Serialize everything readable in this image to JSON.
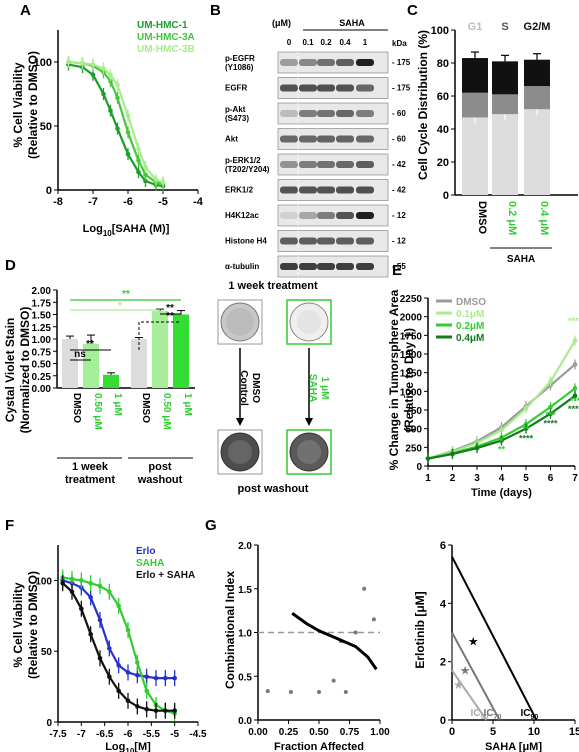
{
  "panels": {
    "A": "A",
    "B": "B",
    "C": "C",
    "D": "D",
    "E": "E",
    "F": "F",
    "G": "G"
  },
  "colors": {
    "hmc1": "#1b9e2a",
    "hmc3a": "#43c83a",
    "hmc3b": "#a8ec8e",
    "dmso": "#9a9a9a",
    "erlo": "#2233cc",
    "saha": "#33cc33",
    "combo": "#111111",
    "g1": "#dddddd",
    "s": "#8c8c8c",
    "g2m": "#111111"
  },
  "chart_data": [
    {
      "panel": "A",
      "type": "line",
      "xlabel": "Log10[SAHA (M)]",
      "ylabel": "% Cell Viability (Relative to DMSO)",
      "xlim": [
        -8,
        -4
      ],
      "ylim": [
        0,
        125
      ],
      "xticks": [
        "-8",
        "-7",
        "-6",
        "-5",
        "-4"
      ],
      "yticks": [
        "0",
        "50",
        "100"
      ],
      "series": [
        {
          "name": "UM-HMC-1",
          "x": [
            -7.7,
            -7.3,
            -7.0,
            -6.7,
            -6.5,
            -6.3,
            -6.0,
            -5.7,
            -5.5,
            -5.2,
            -5.0
          ],
          "y": [
            98,
            96,
            90,
            75,
            62,
            48,
            28,
            14,
            7,
            4,
            3
          ]
        },
        {
          "name": "UM-HMC-3A",
          "x": [
            -7.7,
            -7.3,
            -7.0,
            -6.7,
            -6.5,
            -6.3,
            -6.0,
            -5.7,
            -5.5,
            -5.2,
            -5.0
          ],
          "y": [
            100,
            99,
            97,
            92,
            85,
            72,
            45,
            23,
            12,
            6,
            5
          ]
        },
        {
          "name": "UM-HMC-3B",
          "x": [
            -7.7,
            -7.3,
            -7.0,
            -6.7,
            -6.5,
            -6.3,
            -6.0,
            -5.7,
            -5.5,
            -5.2,
            -5.0
          ],
          "y": [
            100,
            99,
            98,
            95,
            90,
            82,
            58,
            32,
            18,
            8,
            6
          ]
        }
      ]
    },
    {
      "panel": "C",
      "type": "bar",
      "ylabel": "Cell Cycle Distribution (%)",
      "ylim": [
        0,
        100
      ],
      "yticks": [
        "0",
        "20",
        "40",
        "60",
        "80",
        "100"
      ],
      "categories": [
        "DMSO",
        "0.2 μM",
        "0.4 μM"
      ],
      "group_label": "SAHA",
      "legend": [
        "G1",
        "S",
        "G2/M"
      ],
      "series": [
        {
          "name": "G1",
          "values": [
            47,
            49,
            52
          ]
        },
        {
          "name": "S",
          "values": [
            15,
            12,
            14
          ]
        },
        {
          "name": "G2/M",
          "values": [
            21,
            20,
            16
          ]
        }
      ]
    },
    {
      "panel": "D",
      "type": "bar",
      "ylabel": "Cystal Violet Stain (Normalized to DMSO)",
      "ylim": [
        0,
        2.0
      ],
      "yticks": [
        "0.00",
        "0.25",
        "0.50",
        "0.75",
        "1.00",
        "1.25",
        "1.50",
        "1.75",
        "2.00"
      ],
      "categories": [
        "DMSO",
        "0.50 μM",
        "1 μM",
        "DMSO",
        "0.50 μM",
        "1 μM"
      ],
      "values": [
        1.0,
        0.9,
        0.27,
        1.0,
        1.57,
        1.5
      ],
      "groups": [
        "1 week treatment",
        "post washout"
      ],
      "sig": [
        "ns",
        "**",
        "**",
        "**",
        "*",
        "**"
      ]
    },
    {
      "panel": "E",
      "type": "line",
      "xlabel": "Time (days)",
      "ylabel": "% Change in Tumorsphere Area (Relative to Day 1)",
      "xlim": [
        1,
        7
      ],
      "ylim": [
        0,
        2250
      ],
      "xticks": [
        "1",
        "2",
        "3",
        "4",
        "5",
        "6",
        "7"
      ],
      "yticks": [
        "0",
        "250",
        "500",
        "750",
        "1000",
        "1250",
        "1500",
        "1750",
        "2000",
        "2250"
      ],
      "series": [
        {
          "name": "DMSO",
          "x": [
            1,
            2,
            3,
            4,
            5,
            6,
            7
          ],
          "y": [
            100,
            200,
            330,
            520,
            800,
            1080,
            1360
          ]
        },
        {
          "name": "0.1μM",
          "x": [
            1,
            2,
            3,
            4,
            5,
            6,
            7
          ],
          "y": [
            100,
            190,
            310,
            480,
            770,
            1130,
            1680
          ]
        },
        {
          "name": "0.2μM",
          "x": [
            1,
            2,
            3,
            4,
            5,
            6,
            7
          ],
          "y": [
            100,
            170,
            260,
            380,
            560,
            790,
            1040
          ]
        },
        {
          "name": "0.4μM",
          "x": [
            1,
            2,
            3,
            4,
            5,
            6,
            7
          ],
          "y": [
            100,
            160,
            240,
            340,
            500,
            700,
            940
          ]
        }
      ],
      "annotations": [
        "****",
        "*",
        "**",
        "**",
        "****",
        "***",
        "****",
        "***",
        "****"
      ]
    },
    {
      "panel": "F",
      "type": "line",
      "xlabel": "Log10[M]",
      "ylabel": "% Cell Viability (Relative to DMSO)",
      "xlim": [
        -7.5,
        -4.5
      ],
      "ylim": [
        0,
        125
      ],
      "xticks": [
        "-7.5",
        "-7",
        "-6.5",
        "-6",
        "-5.5",
        "-5",
        "-4.5"
      ],
      "yticks": [
        "0",
        "50",
        "100"
      ],
      "series": [
        {
          "name": "Erlo",
          "x": [
            -7.4,
            -7.2,
            -7.0,
            -6.8,
            -6.6,
            -6.4,
            -6.2,
            -6.0,
            -5.8,
            -5.6,
            -5.4,
            -5.2,
            -5.0
          ],
          "y": [
            100,
            98,
            95,
            88,
            72,
            52,
            40,
            35,
            33,
            32,
            31,
            31,
            31
          ]
        },
        {
          "name": "SAHA",
          "x": [
            -7.4,
            -7.2,
            -7.0,
            -6.8,
            -6.6,
            -6.4,
            -6.2,
            -6.0,
            -5.8,
            -5.6,
            -5.4,
            -5.2,
            -5.0
          ],
          "y": [
            102,
            101,
            100,
            98,
            96,
            92,
            82,
            65,
            42,
            22,
            12,
            8,
            6
          ]
        },
        {
          "name": "Erlo + SAHA",
          "x": [
            -7.4,
            -7.2,
            -7.0,
            -6.8,
            -6.6,
            -6.4,
            -6.2,
            -6.0,
            -5.8,
            -5.6,
            -5.4,
            -5.2,
            -5.0
          ],
          "y": [
            98,
            92,
            80,
            62,
            45,
            32,
            22,
            15,
            11,
            9,
            8,
            8,
            8
          ]
        }
      ]
    },
    {
      "panel": "G1",
      "type": "scatter",
      "xlabel": "Fraction Affected",
      "ylabel": "Combinational Index",
      "xlim": [
        0,
        1
      ],
      "ylim": [
        0,
        2
      ],
      "xticks": [
        "0.00",
        "0.25",
        "0.50",
        "0.75",
        "1.00"
      ],
      "yticks": [
        "0.0",
        "0.5",
        "1.0",
        "1.5",
        "2.0"
      ],
      "points": {
        "x": [
          0.08,
          0.27,
          0.5,
          0.62,
          0.68,
          0.72,
          0.8,
          0.87,
          0.95
        ],
        "y": [
          0.33,
          0.32,
          0.32,
          0.45,
          0.9,
          0.32,
          1.0,
          1.5,
          1.15
        ]
      },
      "curve": {
        "x": [
          0.28,
          0.4,
          0.5,
          0.6,
          0.7,
          0.8,
          0.9,
          0.97
        ],
        "y": [
          1.22,
          1.1,
          1.02,
          0.96,
          0.9,
          0.84,
          0.72,
          0.58
        ]
      },
      "reference_y": 1.0
    },
    {
      "panel": "G2",
      "type": "line",
      "xlabel": "SAHA [μM]",
      "ylabel": "Erlotinib [μM]",
      "xlim": [
        0,
        15
      ],
      "ylim": [
        0,
        6
      ],
      "xticks": [
        "0",
        "5",
        "10",
        "15"
      ],
      "yticks": [
        "0",
        "2",
        "4",
        "6"
      ],
      "isobolograms": [
        {
          "name": "IC50",
          "x": [
            0,
            4.2
          ],
          "y": [
            1.7,
            0
          ]
        },
        {
          "name": "IC70",
          "x": [
            0,
            5.8
          ],
          "y": [
            3.0,
            0
          ]
        },
        {
          "name": "IC90",
          "x": [
            0,
            10.3
          ],
          "y": [
            5.6,
            0
          ]
        }
      ],
      "points": [
        {
          "x": 0.8,
          "y": 1.2
        },
        {
          "x": 1.6,
          "y": 1.7
        },
        {
          "x": 2.6,
          "y": 2.7
        }
      ]
    }
  ],
  "A": {
    "xlabel_main": "Log",
    "xlabel_sub": "10",
    "xlabel_tail": "[SAHA (M)]",
    "ylabel1": "% Cell Viability",
    "ylabel2": "(Relative to DMSO)",
    "legend": [
      "UM-HMC-1",
      "UM-HMC-3A",
      "UM-HMC-3B"
    ]
  },
  "B": {
    "units": "(μM)",
    "treatment": "SAHA",
    "kda": "kDa",
    "doses": [
      "0",
      "0.1",
      "0.2",
      "0.4",
      "1"
    ],
    "rows": [
      {
        "label1": "p-EGFR",
        "label2": "(Y1086)",
        "kda": "175"
      },
      {
        "label1": "EGFR",
        "label2": "",
        "kda": "175"
      },
      {
        "label1": "p-Akt",
        "label2": "(S473)",
        "kda": "60"
      },
      {
        "label1": "Akt",
        "label2": "",
        "kda": "60"
      },
      {
        "label1": "p-ERK1/2",
        "label2": "(T202/Y204)",
        "kda": "42"
      },
      {
        "label1": "ERK1/2",
        "label2": "",
        "kda": "42"
      },
      {
        "label1": "H4K12ac",
        "label2": "",
        "kda": "12"
      },
      {
        "label1": "Histone H4",
        "label2": "",
        "kda": "12"
      },
      {
        "label1": "α-tubulin",
        "label2": "",
        "kda": "55"
      }
    ]
  },
  "D": {
    "ylabel1": "Cystal Violet Stain",
    "ylabel2": "(Normalized to DMSO)",
    "group1a": "1 week",
    "group1b": "treatment",
    "group2a": "post",
    "group2b": "washout",
    "img_title": "1 week treatment",
    "img_bottom": "post washout",
    "arrow1a": "DMSO",
    "arrow1b": "Control",
    "arrow2a": "1 μM",
    "arrow2b": "SAHA"
  },
  "E": {
    "ylabel1": "% Change in Tumorsphere Area",
    "ylabel2": "(Relative to Day 1)"
  },
  "F": {
    "xlabel_main": "Log",
    "xlabel_sub": "10",
    "xlabel_tail": "[M]",
    "ylabel1": "% Cell Viability",
    "ylabel2": "(Relative to DMSO)"
  },
  "G": {
    "iso_labels": [
      "IC",
      "IC",
      "IC"
    ],
    "iso_subs": [
      "50",
      "70",
      "90"
    ]
  }
}
